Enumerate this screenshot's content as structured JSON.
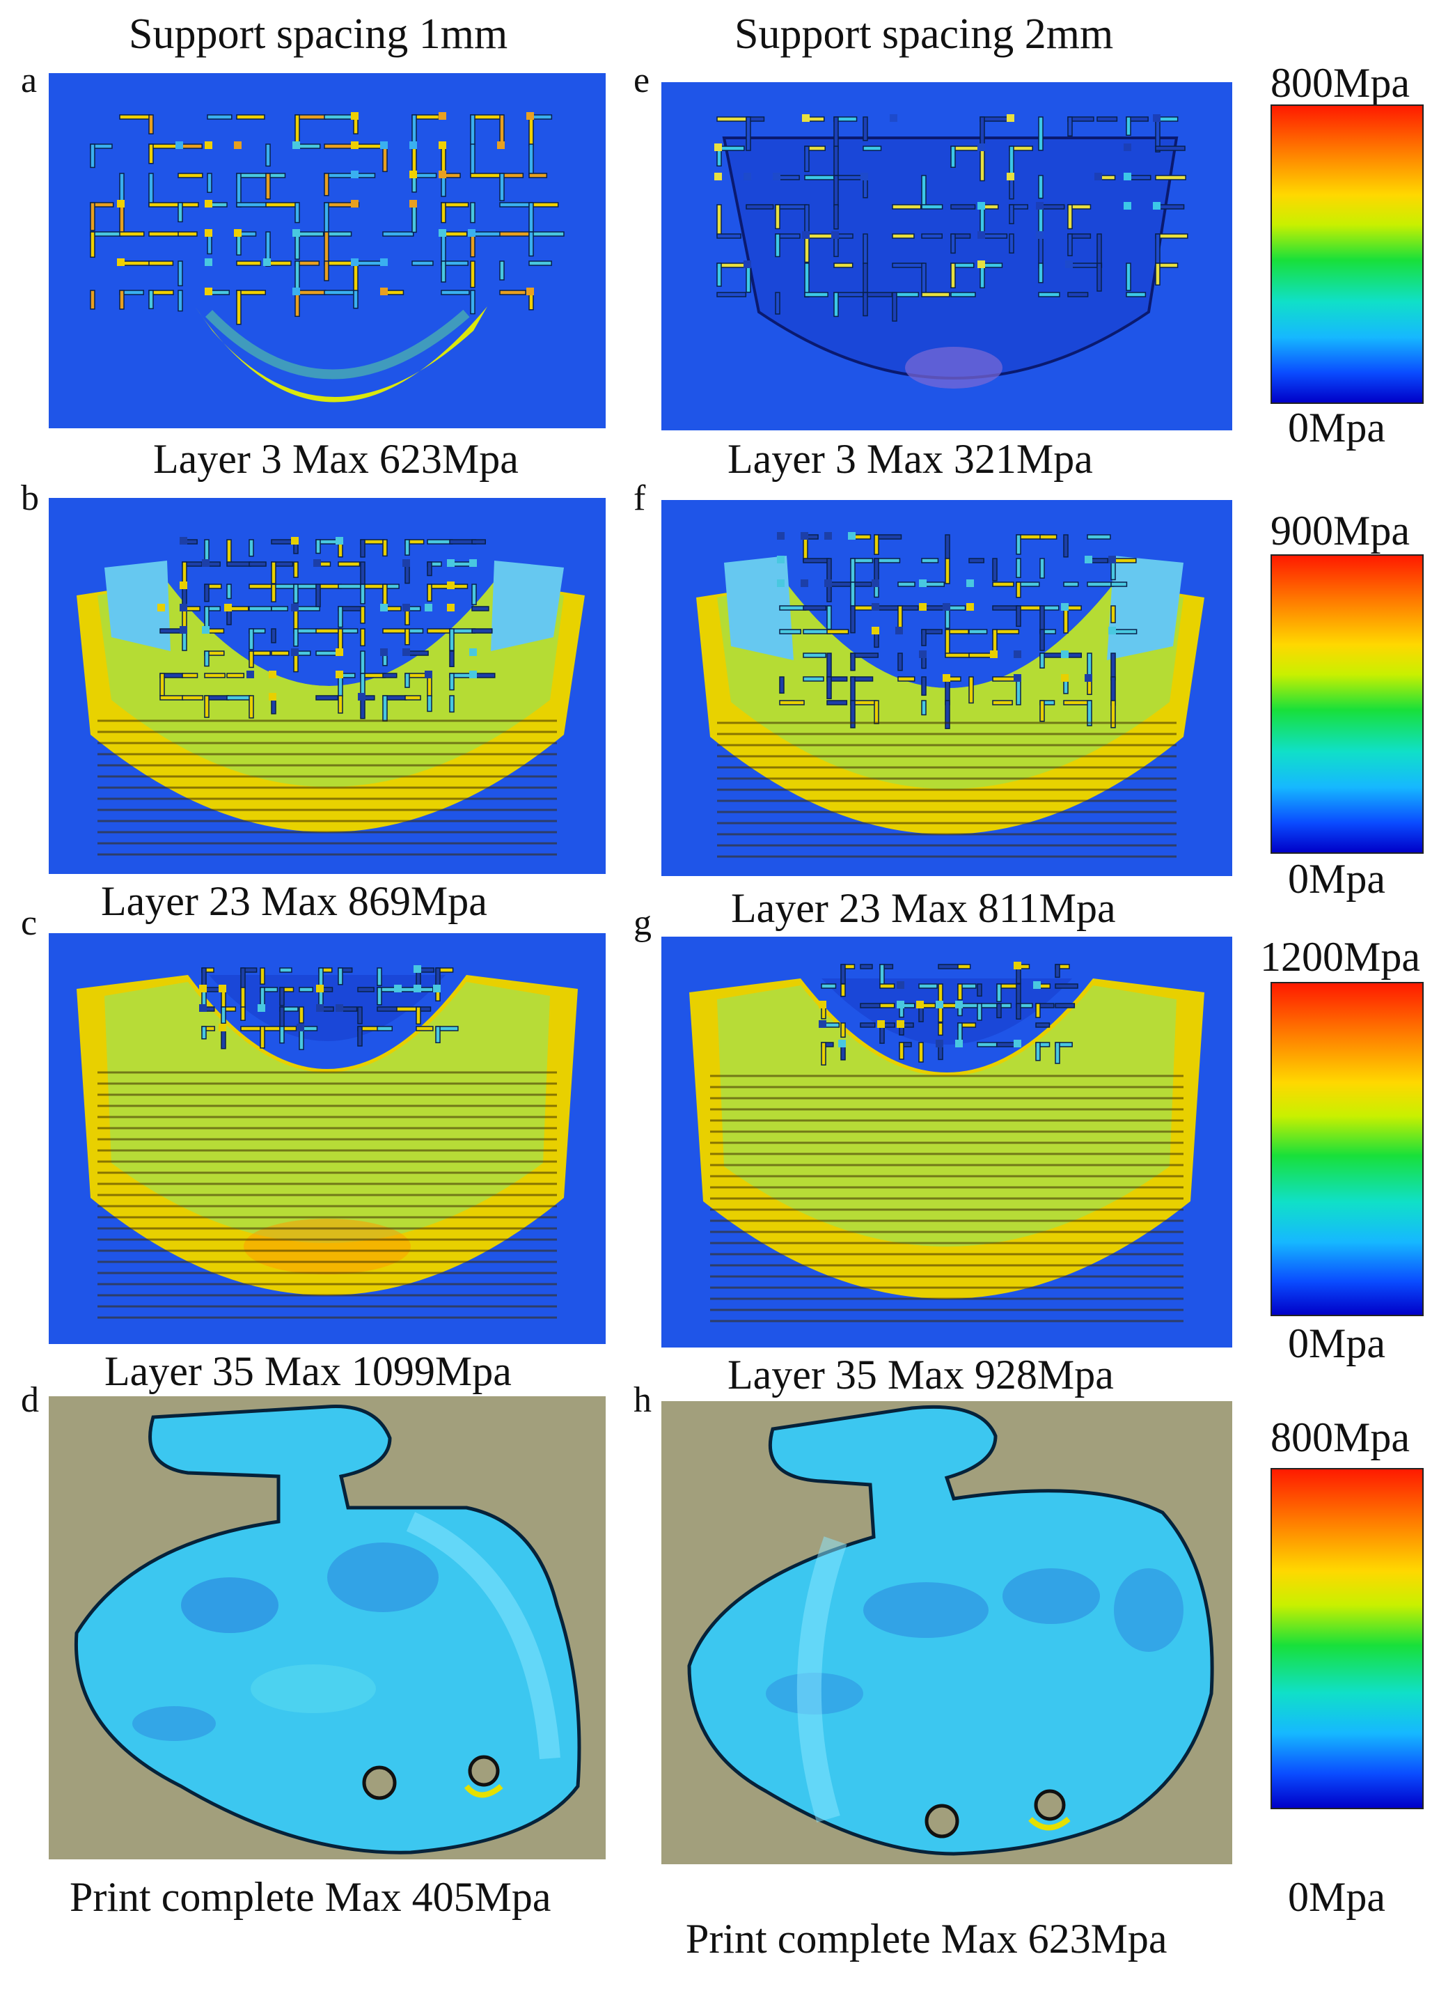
{
  "column_headers": {
    "left": "Support spacing 1mm",
    "right": "Support spacing 2mm"
  },
  "panels": [
    {
      "label": "a",
      "caption": "Layer 3 Max 623Mpa",
      "max_mpa": 623
    },
    {
      "label": "b",
      "caption": "Layer 23 Max 869Mpa",
      "max_mpa": 869
    },
    {
      "label": "c",
      "caption": "Layer 35 Max 1099Mpa",
      "max_mpa": 1099
    },
    {
      "label": "d",
      "caption": "Print complete Max 405Mpa",
      "max_mpa": 405
    },
    {
      "label": "e",
      "caption": "Layer 3 Max 321Mpa",
      "max_mpa": 321
    },
    {
      "label": "f",
      "caption": "Layer 23 Max 811Mpa",
      "max_mpa": 811
    },
    {
      "label": "g",
      "caption": "Layer 35 Max 928Mpa",
      "max_mpa": 928
    },
    {
      "label": "h",
      "caption": "Print complete Max 623Mpa",
      "max_mpa": 623
    }
  ],
  "color_scales": [
    {
      "max": "800Mpa",
      "min": "0Mpa"
    },
    {
      "max": "900Mpa",
      "min": "0Mpa"
    },
    {
      "max": "1200Mpa",
      "min": "0Mpa"
    },
    {
      "max": "800Mpa",
      "min": "0Mpa"
    }
  ],
  "colors": {
    "layer_background": "#1f55e8",
    "complete_background": "#a29f7c",
    "surface_low": "#2ec3ee",
    "stress_high": "#ffd000"
  }
}
